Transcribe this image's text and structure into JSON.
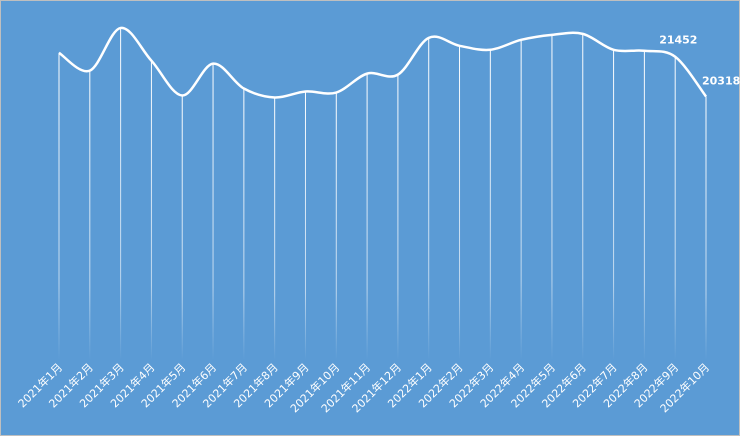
{
  "chart_data": {
    "type": "line",
    "categories": [
      "2021年1月",
      "2021年2月",
      "2021年3月",
      "2021年4月",
      "2021年5月",
      "2021年6月",
      "2021年7月",
      "2021年8月",
      "2021年9月",
      "2021年10月",
      "2021年11月",
      "2021年12月",
      "2022年1月",
      "2022年2月",
      "2022年3月",
      "2022年4月",
      "2022年5月",
      "2022年6月",
      "2022年7月",
      "2022年8月",
      "2022年9月",
      "2022年10月"
    ],
    "values": [
      21565,
      21055,
      22274,
      21339,
      20346,
      21254,
      20545,
      20290,
      20460,
      20431,
      20970,
      20942,
      21991,
      21764,
      21650,
      21934,
      22076,
      22104,
      21650,
      21622,
      21452,
      20318
    ],
    "labeled_points": [
      20,
      21
    ],
    "color": "#ffffff",
    "background": "#5b9bd5",
    "smooth": true,
    "ylim": [
      12800,
      22500
    ]
  }
}
